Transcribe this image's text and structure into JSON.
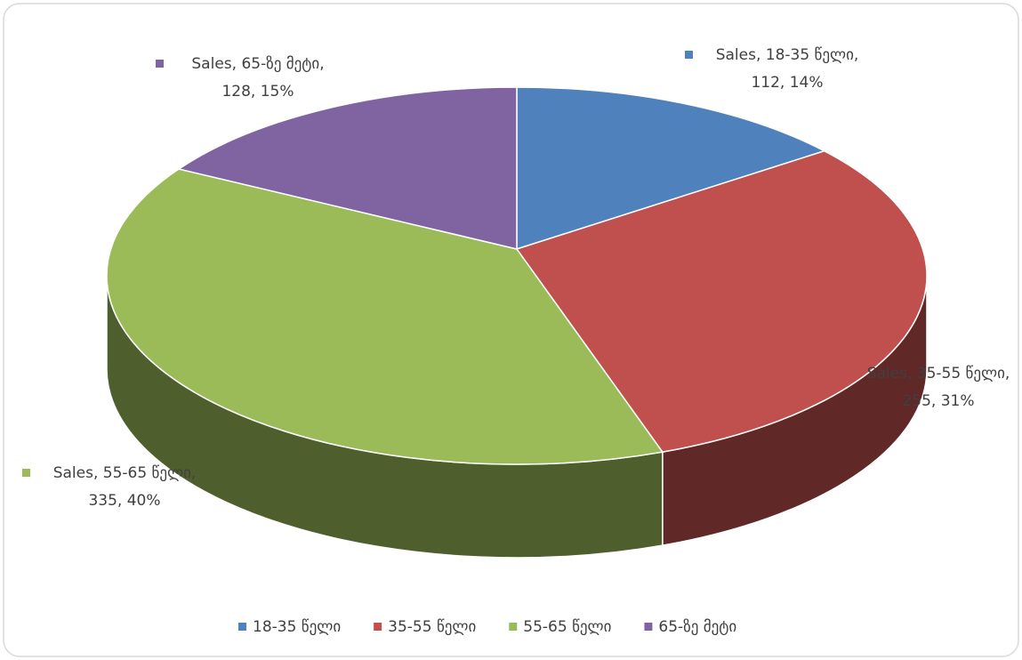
{
  "chart_data": {
    "type": "pie",
    "categories": [
      "18-35 წელი",
      "35-55 წელი",
      "55-65 წელი",
      "65-ზე მეტი"
    ],
    "series": [
      {
        "name": "Sales",
        "values": [
          112,
          255,
          335,
          128
        ],
        "value_labels": [
          "112, 14%",
          "255, 31%",
          "335, 40%",
          "128, 15%"
        ],
        "colors": [
          "#4f81bd",
          "#c0504d",
          "#9bbb59",
          "#8064a2"
        ]
      }
    ],
    "legend": "bottom"
  }
}
